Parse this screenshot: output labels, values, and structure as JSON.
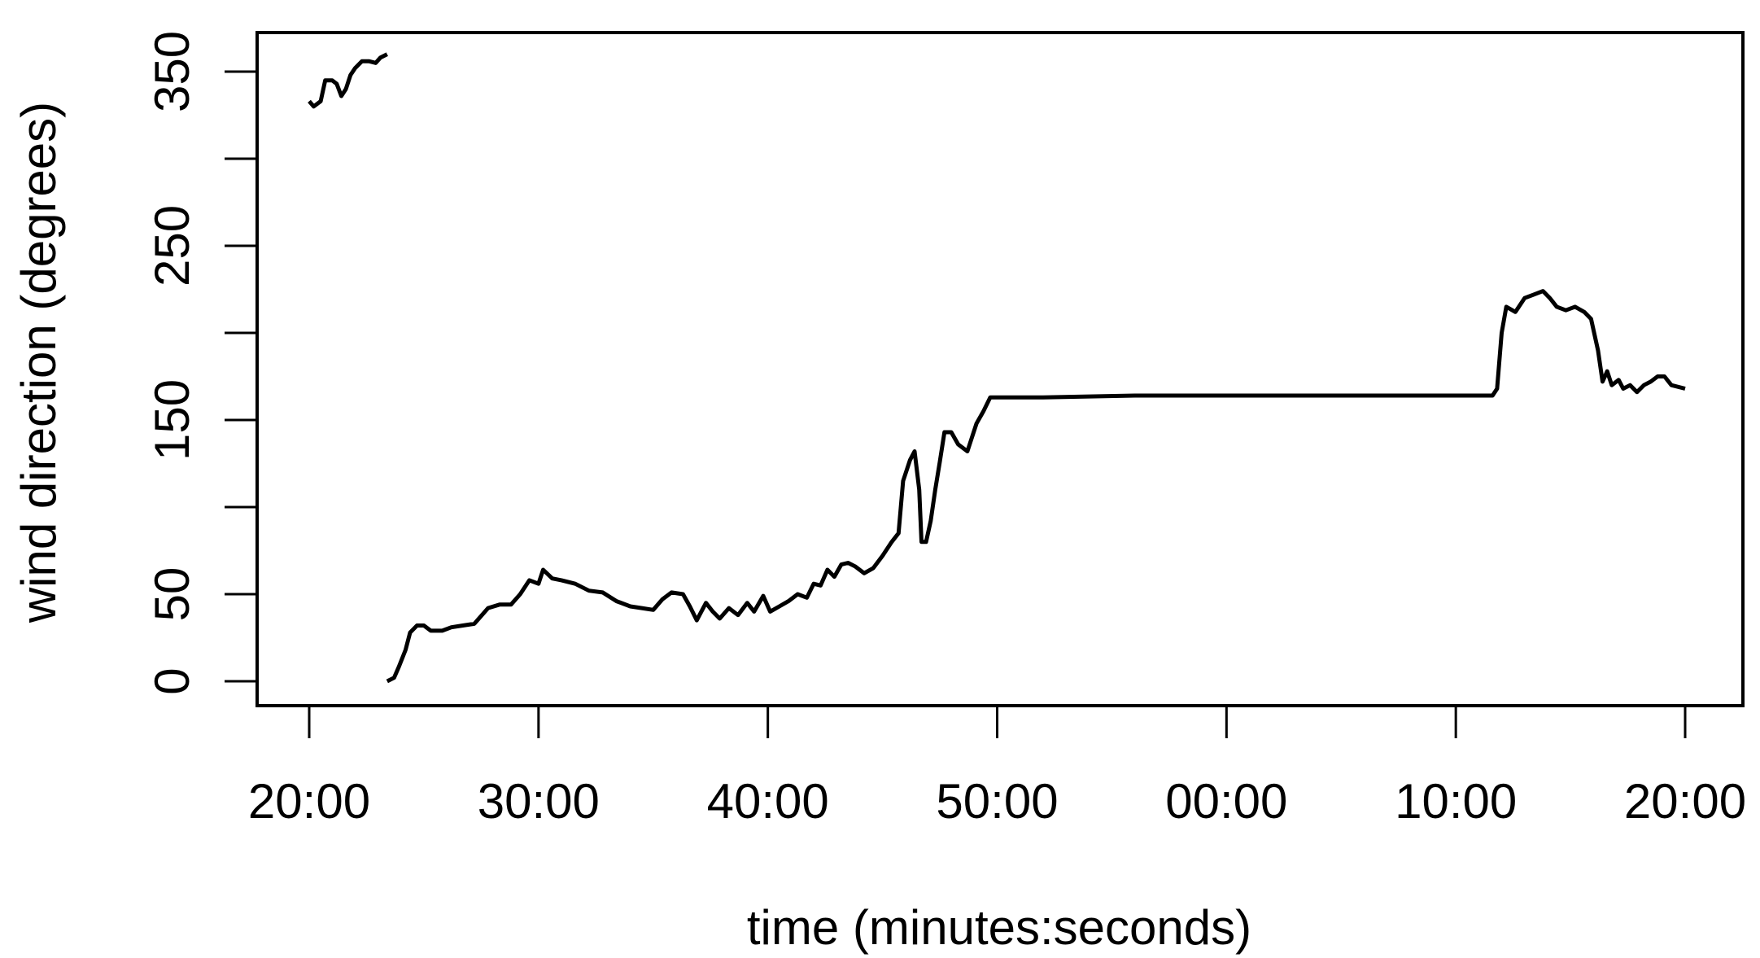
{
  "chart_data": {
    "type": "line",
    "title": "",
    "xlabel": "time (minutes:seconds)",
    "ylabel": "wind direction (degrees)",
    "xlim": [
      "20:00",
      "20:00 (next hour)"
    ],
    "ylim": [
      -15,
      370
    ],
    "grid": false,
    "legend": "none",
    "line_color": "#000000",
    "x_ticks": [
      {
        "label": "20:00",
        "minutes_elapsed": 0
      },
      {
        "label": "30:00",
        "minutes_elapsed": 10
      },
      {
        "label": "40:00",
        "minutes_elapsed": 20
      },
      {
        "label": "50:00",
        "minutes_elapsed": 30
      },
      {
        "label": "00:00",
        "minutes_elapsed": 40
      },
      {
        "label": "10:00",
        "minutes_elapsed": 50
      },
      {
        "label": "20:00",
        "minutes_elapsed": 60
      }
    ],
    "y_ticks": [
      0,
      50,
      100,
      150,
      200,
      250,
      300,
      350
    ],
    "y_tick_labels": [
      "0",
      "50",
      "",
      "150",
      "",
      "250",
      "",
      "350"
    ],
    "series": [
      {
        "values": [
          [
            0.0,
            333
          ],
          [
            0.2,
            330
          ],
          [
            0.5,
            333
          ],
          [
            0.7,
            345
          ],
          [
            1.0,
            345
          ],
          [
            1.2,
            343
          ],
          [
            1.4,
            336
          ],
          [
            1.6,
            340
          ],
          [
            1.8,
            348
          ],
          [
            2.0,
            352
          ],
          [
            2.3,
            356
          ],
          [
            2.6,
            356
          ],
          [
            2.9,
            355
          ],
          [
            3.1,
            358
          ],
          [
            3.4,
            360
          ]
        ]
      },
      {
        "values": [
          [
            3.4,
            0
          ],
          [
            3.7,
            2
          ],
          [
            3.9,
            8
          ],
          [
            4.2,
            18
          ],
          [
            4.4,
            28
          ],
          [
            4.7,
            32
          ],
          [
            5.0,
            32
          ],
          [
            5.3,
            29
          ],
          [
            5.8,
            29
          ],
          [
            6.2,
            31
          ],
          [
            6.7,
            32
          ],
          [
            7.2,
            33
          ],
          [
            7.8,
            42
          ],
          [
            8.3,
            44
          ],
          [
            8.8,
            44
          ],
          [
            9.2,
            50
          ],
          [
            9.6,
            58
          ],
          [
            10.0,
            56
          ],
          [
            10.2,
            64
          ],
          [
            10.6,
            59
          ],
          [
            11.0,
            58
          ],
          [
            11.6,
            56
          ],
          [
            12.2,
            52
          ],
          [
            12.8,
            51
          ],
          [
            13.4,
            46
          ],
          [
            14.0,
            43
          ],
          [
            14.5,
            42
          ],
          [
            15.0,
            41
          ],
          [
            15.4,
            47
          ],
          [
            15.8,
            51
          ],
          [
            16.3,
            50
          ],
          [
            16.6,
            43
          ],
          [
            16.9,
            35
          ],
          [
            17.3,
            45
          ],
          [
            17.6,
            40
          ],
          [
            17.9,
            36
          ],
          [
            18.3,
            42
          ],
          [
            18.7,
            38
          ],
          [
            19.1,
            45
          ],
          [
            19.4,
            40
          ],
          [
            19.8,
            49
          ],
          [
            20.1,
            40
          ],
          [
            20.5,
            43
          ],
          [
            20.9,
            46
          ],
          [
            21.3,
            50
          ],
          [
            21.7,
            48
          ],
          [
            22.0,
            56
          ],
          [
            22.3,
            55
          ],
          [
            22.6,
            64
          ],
          [
            22.9,
            60
          ],
          [
            23.2,
            67
          ],
          [
            23.5,
            68
          ],
          [
            23.8,
            66
          ],
          [
            24.2,
            62
          ],
          [
            24.6,
            65
          ],
          [
            25.0,
            72
          ],
          [
            25.4,
            80
          ],
          [
            25.7,
            85
          ],
          [
            25.9,
            115
          ],
          [
            26.2,
            127
          ],
          [
            26.4,
            132
          ],
          [
            26.6,
            110
          ],
          [
            26.7,
            80
          ],
          [
            26.9,
            80
          ],
          [
            27.1,
            92
          ],
          [
            27.3,
            110
          ],
          [
            27.5,
            126
          ],
          [
            27.7,
            143
          ],
          [
            28.0,
            143
          ],
          [
            28.3,
            136
          ],
          [
            28.7,
            132
          ],
          [
            28.9,
            140
          ],
          [
            29.1,
            148
          ],
          [
            29.4,
            155
          ],
          [
            29.7,
            163
          ],
          [
            32.0,
            163
          ],
          [
            36.0,
            164
          ],
          [
            40.0,
            164
          ],
          [
            44.0,
            164
          ],
          [
            48.0,
            164
          ],
          [
            51.6,
            164
          ],
          [
            51.8,
            168
          ],
          [
            52.0,
            200
          ],
          [
            52.2,
            215
          ],
          [
            52.6,
            212
          ],
          [
            53.0,
            220
          ],
          [
            53.4,
            222
          ],
          [
            53.8,
            224
          ],
          [
            54.1,
            220
          ],
          [
            54.4,
            215
          ],
          [
            54.8,
            213
          ],
          [
            55.2,
            215
          ],
          [
            55.6,
            212
          ],
          [
            55.9,
            208
          ],
          [
            56.2,
            190
          ],
          [
            56.4,
            172
          ],
          [
            56.6,
            178
          ],
          [
            56.8,
            170
          ],
          [
            57.1,
            173
          ],
          [
            57.3,
            168
          ],
          [
            57.6,
            170
          ],
          [
            57.9,
            166
          ],
          [
            58.2,
            170
          ],
          [
            58.5,
            172
          ],
          [
            58.8,
            175
          ],
          [
            59.1,
            175
          ],
          [
            59.4,
            170
          ],
          [
            60.0,
            168
          ]
        ]
      }
    ]
  }
}
